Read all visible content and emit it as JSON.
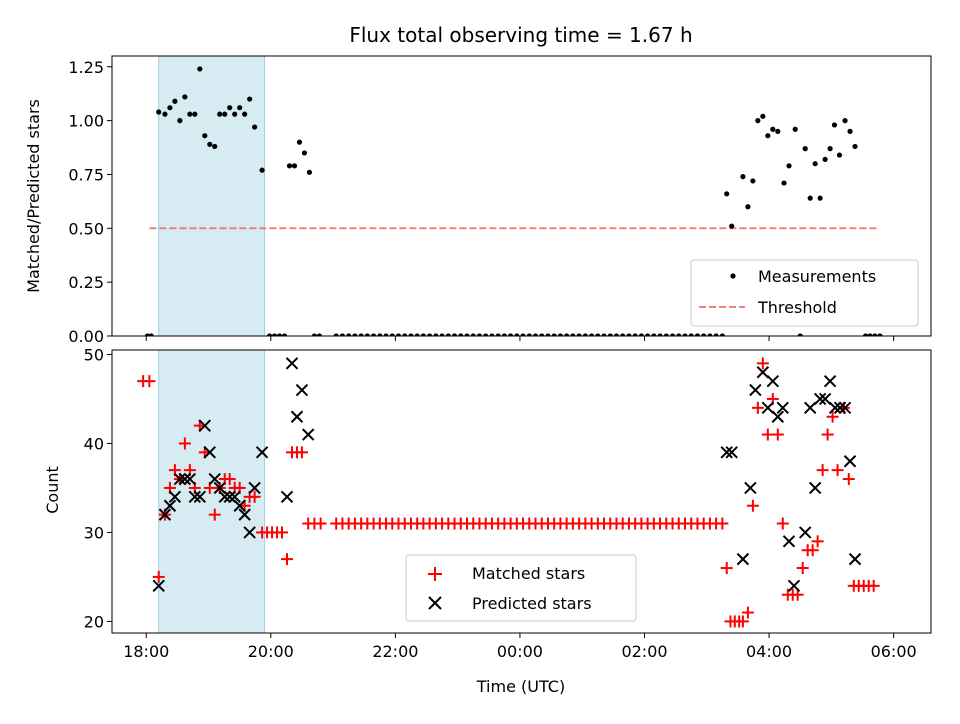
{
  "chart_data": [
    {
      "type": "scatter",
      "panel": "top",
      "title": "Flux total observing time = 1.67 h",
      "xlabel": "",
      "ylabel": "Matched/Predicted stars",
      "ylim": [
        0,
        1.3
      ],
      "xlim": [
        -0.55,
        12.6
      ],
      "xunit": "hours since 18:00 UTC",
      "yticks": [
        0,
        0.25,
        0.5,
        0.75,
        1.0,
        1.25
      ],
      "ytick_labels": [
        "0.00",
        "0.25",
        "0.50",
        "0.75",
        "1.00",
        "1.25"
      ],
      "shaded_span": [
        0.2,
        1.9
      ],
      "threshold": {
        "value": 0.5,
        "x_range": [
          0.05,
          11.75
        ],
        "color": "#f08080"
      },
      "legend": {
        "position": "lower right",
        "entries": [
          "Measurements",
          "Threshold"
        ]
      },
      "measurements": [
        [
          0.02,
          0
        ],
        [
          0.08,
          0
        ],
        [
          0.2,
          1.04
        ],
        [
          0.3,
          1.03
        ],
        [
          0.38,
          1.06
        ],
        [
          0.46,
          1.09
        ],
        [
          0.54,
          1.0
        ],
        [
          0.62,
          1.11
        ],
        [
          0.7,
          1.03
        ],
        [
          0.78,
          1.03
        ],
        [
          0.86,
          1.24
        ],
        [
          0.94,
          0.93
        ],
        [
          1.02,
          0.89
        ],
        [
          1.1,
          0.88
        ],
        [
          1.18,
          1.03
        ],
        [
          1.26,
          1.03
        ],
        [
          1.34,
          1.06
        ],
        [
          1.42,
          1.03
        ],
        [
          1.5,
          1.06
        ],
        [
          1.58,
          1.03
        ],
        [
          1.66,
          1.1
        ],
        [
          1.74,
          0.97
        ],
        [
          1.86,
          0.77
        ],
        [
          1.98,
          0
        ],
        [
          2.06,
          0
        ],
        [
          2.14,
          0
        ],
        [
          2.22,
          0
        ],
        [
          2.3,
          0.79
        ],
        [
          2.38,
          0.79
        ],
        [
          2.46,
          0.9
        ],
        [
          2.54,
          0.85
        ],
        [
          2.62,
          0.76
        ],
        [
          2.7,
          0
        ],
        [
          2.78,
          0
        ],
        [
          3.05,
          0
        ],
        [
          3.15,
          0
        ],
        [
          3.25,
          0
        ],
        [
          3.35,
          0
        ],
        [
          3.45,
          0
        ],
        [
          3.55,
          0
        ],
        [
          3.65,
          0
        ],
        [
          3.75,
          0
        ],
        [
          3.85,
          0
        ],
        [
          3.95,
          0
        ],
        [
          4.05,
          0
        ],
        [
          4.15,
          0
        ],
        [
          4.25,
          0
        ],
        [
          4.35,
          0
        ],
        [
          4.45,
          0
        ],
        [
          4.55,
          0
        ],
        [
          4.65,
          0
        ],
        [
          4.75,
          0
        ],
        [
          4.85,
          0
        ],
        [
          4.95,
          0
        ],
        [
          5.05,
          0
        ],
        [
          5.15,
          0
        ],
        [
          5.25,
          0
        ],
        [
          5.35,
          0
        ],
        [
          5.45,
          0
        ],
        [
          5.55,
          0
        ],
        [
          5.65,
          0
        ],
        [
          5.75,
          0
        ],
        [
          5.85,
          0
        ],
        [
          5.95,
          0
        ],
        [
          6.05,
          0
        ],
        [
          6.15,
          0
        ],
        [
          6.25,
          0
        ],
        [
          6.35,
          0
        ],
        [
          6.45,
          0
        ],
        [
          6.55,
          0
        ],
        [
          6.65,
          0
        ],
        [
          6.75,
          0
        ],
        [
          6.85,
          0
        ],
        [
          6.95,
          0
        ],
        [
          7.05,
          0
        ],
        [
          7.15,
          0
        ],
        [
          7.25,
          0
        ],
        [
          7.35,
          0
        ],
        [
          7.45,
          0
        ],
        [
          7.55,
          0
        ],
        [
          7.65,
          0
        ],
        [
          7.75,
          0
        ],
        [
          7.85,
          0
        ],
        [
          7.95,
          0
        ],
        [
          8.05,
          0
        ],
        [
          8.15,
          0
        ],
        [
          8.25,
          0
        ],
        [
          8.35,
          0
        ],
        [
          8.45,
          0
        ],
        [
          8.55,
          0
        ],
        [
          8.65,
          0
        ],
        [
          8.75,
          0
        ],
        [
          8.85,
          0
        ],
        [
          8.95,
          0
        ],
        [
          9.05,
          0
        ],
        [
          9.15,
          0
        ],
        [
          9.25,
          0
        ],
        [
          9.32,
          0.66
        ],
        [
          9.4,
          0.51
        ],
        [
          9.58,
          0.74
        ],
        [
          9.66,
          0.6
        ],
        [
          9.74,
          0.72
        ],
        [
          9.82,
          1.0
        ],
        [
          9.9,
          1.02
        ],
        [
          9.98,
          0.93
        ],
        [
          10.06,
          0.96
        ],
        [
          10.14,
          0.95
        ],
        [
          10.24,
          0.71
        ],
        [
          10.32,
          0.79
        ],
        [
          10.42,
          0.96
        ],
        [
          10.58,
          0.87
        ],
        [
          10.66,
          0.64
        ],
        [
          10.74,
          0.8
        ],
        [
          10.82,
          0.64
        ],
        [
          10.9,
          0.82
        ],
        [
          10.98,
          0.87
        ],
        [
          11.05,
          0.98
        ],
        [
          11.13,
          0.84
        ],
        [
          11.22,
          1.0
        ],
        [
          11.3,
          0.95
        ],
        [
          11.38,
          0.88
        ],
        [
          10.5,
          0
        ],
        [
          11.55,
          0
        ],
        [
          11.62,
          0
        ],
        [
          11.7,
          0
        ],
        [
          11.78,
          0
        ]
      ]
    },
    {
      "type": "scatter",
      "panel": "bottom",
      "title": "",
      "xlabel": "Time (UTC)",
      "ylabel": "Count",
      "ylim": [
        18.7,
        50.5
      ],
      "xlim": [
        -0.55,
        12.6
      ],
      "yticks": [
        20,
        30,
        40,
        50
      ],
      "ytick_labels": [
        "20",
        "30",
        "40",
        "50"
      ],
      "xticks": [
        0,
        2,
        4,
        6,
        8,
        10,
        12
      ],
      "xtick_labels": [
        "18:00",
        "20:00",
        "22:00",
        "00:00",
        "02:00",
        "04:00",
        "06:00"
      ],
      "shaded_span": [
        0.2,
        1.9
      ],
      "legend": {
        "position": "lower center",
        "entries": [
          "Matched stars",
          "Predicted stars"
        ]
      },
      "matched_stars": [
        [
          -0.05,
          47
        ],
        [
          0.05,
          47
        ],
        [
          0.2,
          25
        ],
        [
          0.3,
          32
        ],
        [
          0.38,
          35
        ],
        [
          0.46,
          37
        ],
        [
          0.54,
          36
        ],
        [
          0.62,
          40
        ],
        [
          0.7,
          37
        ],
        [
          0.78,
          35
        ],
        [
          0.86,
          42
        ],
        [
          0.94,
          39
        ],
        [
          1.02,
          35
        ],
        [
          1.1,
          32
        ],
        [
          1.18,
          35
        ],
        [
          1.26,
          36
        ],
        [
          1.34,
          36
        ],
        [
          1.42,
          35
        ],
        [
          1.5,
          35
        ],
        [
          1.58,
          33
        ],
        [
          1.66,
          34
        ],
        [
          1.74,
          34
        ],
        [
          1.86,
          30
        ],
        [
          1.94,
          30
        ],
        [
          2.02,
          30
        ],
        [
          2.1,
          30
        ],
        [
          2.18,
          30
        ],
        [
          2.26,
          27
        ],
        [
          2.34,
          39
        ],
        [
          2.42,
          39
        ],
        [
          2.5,
          39
        ],
        [
          2.6,
          31
        ],
        [
          2.7,
          31
        ],
        [
          2.8,
          31
        ],
        [
          3.05,
          31
        ],
        [
          3.15,
          31
        ],
        [
          3.25,
          31
        ],
        [
          3.35,
          31
        ],
        [
          3.45,
          31
        ],
        [
          3.55,
          31
        ],
        [
          3.65,
          31
        ],
        [
          3.75,
          31
        ],
        [
          3.85,
          31
        ],
        [
          3.95,
          31
        ],
        [
          4.05,
          31
        ],
        [
          4.15,
          31
        ],
        [
          4.25,
          31
        ],
        [
          4.35,
          31
        ],
        [
          4.45,
          31
        ],
        [
          4.55,
          31
        ],
        [
          4.65,
          31
        ],
        [
          4.75,
          31
        ],
        [
          4.85,
          31
        ],
        [
          4.95,
          31
        ],
        [
          5.05,
          31
        ],
        [
          5.15,
          31
        ],
        [
          5.25,
          31
        ],
        [
          5.35,
          31
        ],
        [
          5.45,
          31
        ],
        [
          5.55,
          31
        ],
        [
          5.65,
          31
        ],
        [
          5.75,
          31
        ],
        [
          5.85,
          31
        ],
        [
          5.95,
          31
        ],
        [
          6.05,
          31
        ],
        [
          6.15,
          31
        ],
        [
          6.25,
          31
        ],
        [
          6.35,
          31
        ],
        [
          6.45,
          31
        ],
        [
          6.55,
          31
        ],
        [
          6.65,
          31
        ],
        [
          6.75,
          31
        ],
        [
          6.85,
          31
        ],
        [
          6.95,
          31
        ],
        [
          7.05,
          31
        ],
        [
          7.15,
          31
        ],
        [
          7.25,
          31
        ],
        [
          7.35,
          31
        ],
        [
          7.45,
          31
        ],
        [
          7.55,
          31
        ],
        [
          7.65,
          31
        ],
        [
          7.75,
          31
        ],
        [
          7.85,
          31
        ],
        [
          7.95,
          31
        ],
        [
          8.05,
          31
        ],
        [
          8.15,
          31
        ],
        [
          8.25,
          31
        ],
        [
          8.35,
          31
        ],
        [
          8.45,
          31
        ],
        [
          8.55,
          31
        ],
        [
          8.65,
          31
        ],
        [
          8.75,
          31
        ],
        [
          8.85,
          31
        ],
        [
          8.95,
          31
        ],
        [
          9.05,
          31
        ],
        [
          9.15,
          31
        ],
        [
          9.25,
          31
        ],
        [
          9.32,
          26
        ],
        [
          9.38,
          20
        ],
        [
          9.45,
          20
        ],
        [
          9.52,
          20
        ],
        [
          9.58,
          20
        ],
        [
          9.66,
          21
        ],
        [
          9.74,
          33
        ],
        [
          9.82,
          44
        ],
        [
          9.9,
          49
        ],
        [
          9.98,
          41
        ],
        [
          10.06,
          45
        ],
        [
          10.14,
          41
        ],
        [
          10.22,
          31
        ],
        [
          10.3,
          23
        ],
        [
          10.38,
          23
        ],
        [
          10.46,
          23
        ],
        [
          10.54,
          26
        ],
        [
          10.62,
          28
        ],
        [
          10.7,
          28
        ],
        [
          10.78,
          29
        ],
        [
          10.86,
          37
        ],
        [
          10.94,
          41
        ],
        [
          11.02,
          43
        ],
        [
          11.1,
          37
        ],
        [
          11.2,
          44
        ],
        [
          11.28,
          36
        ],
        [
          11.36,
          24
        ],
        [
          11.44,
          24
        ],
        [
          11.52,
          24
        ],
        [
          11.6,
          24
        ],
        [
          11.68,
          24
        ]
      ],
      "predicted_stars": [
        [
          0.2,
          24
        ],
        [
          0.3,
          32
        ],
        [
          0.38,
          33
        ],
        [
          0.46,
          34
        ],
        [
          0.54,
          36
        ],
        [
          0.62,
          36
        ],
        [
          0.7,
          36
        ],
        [
          0.78,
          34
        ],
        [
          0.86,
          34
        ],
        [
          0.94,
          42
        ],
        [
          1.02,
          39
        ],
        [
          1.1,
          36
        ],
        [
          1.18,
          35
        ],
        [
          1.26,
          34
        ],
        [
          1.34,
          34
        ],
        [
          1.42,
          34
        ],
        [
          1.5,
          33
        ],
        [
          1.58,
          32
        ],
        [
          1.66,
          30
        ],
        [
          1.74,
          35
        ],
        [
          1.86,
          39
        ],
        [
          2.26,
          34
        ],
        [
          2.34,
          49
        ],
        [
          2.42,
          43
        ],
        [
          2.5,
          46
        ],
        [
          2.6,
          41
        ],
        [
          9.32,
          39
        ],
        [
          9.4,
          39
        ],
        [
          9.58,
          27
        ],
        [
          9.7,
          35
        ],
        [
          9.78,
          46
        ],
        [
          9.9,
          48
        ],
        [
          9.98,
          44
        ],
        [
          10.06,
          47
        ],
        [
          10.14,
          43
        ],
        [
          10.22,
          44
        ],
        [
          10.32,
          29
        ],
        [
          10.4,
          24
        ],
        [
          10.58,
          30
        ],
        [
          10.66,
          44
        ],
        [
          10.74,
          35
        ],
        [
          10.82,
          45
        ],
        [
          10.9,
          45
        ],
        [
          10.98,
          47
        ],
        [
          11.06,
          44
        ],
        [
          11.14,
          44
        ],
        [
          11.22,
          44
        ],
        [
          11.3,
          38
        ],
        [
          11.38,
          27
        ]
      ]
    }
  ]
}
